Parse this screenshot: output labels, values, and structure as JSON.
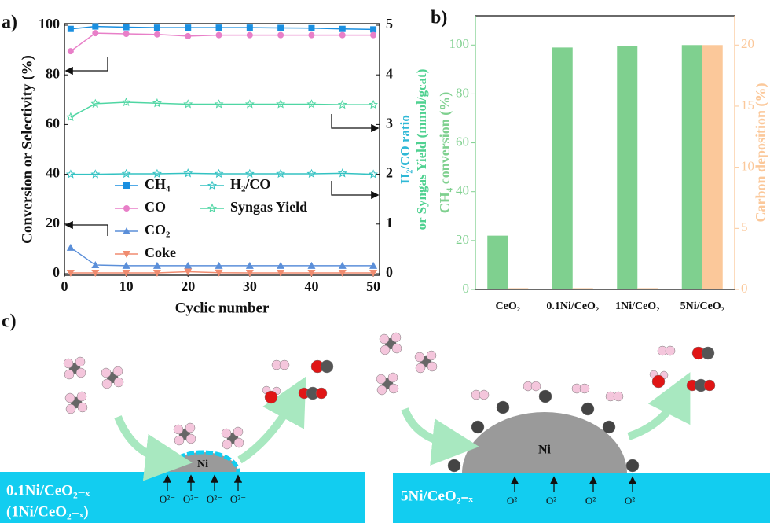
{
  "chart_data": [
    {
      "type": "line",
      "panel_label": "a)",
      "xlabel": "Cyclic number",
      "ylabel": "Conversion or Selectivity (%)",
      "y2label": [
        "H₂/CO ratio",
        "or Syngas Yield (mmol/gcat)"
      ],
      "x": [
        1,
        5,
        10,
        15,
        20,
        25,
        30,
        35,
        40,
        45,
        50
      ],
      "xlim": [
        0,
        50.5
      ],
      "xticks": [
        0,
        10,
        20,
        30,
        40,
        50
      ],
      "ylim": [
        0,
        100
      ],
      "yticks": [
        0,
        20,
        40,
        60,
        80,
        100
      ],
      "y2lim": [
        0,
        5
      ],
      "y2ticks": [
        0,
        1,
        2,
        3,
        4,
        5
      ],
      "series": [
        {
          "name": "CH₄",
          "color": "#1a8fe0",
          "marker": "square",
          "values": [
            98.5,
            99.5,
            99.2,
            99,
            99,
            99,
            99,
            98.9,
            98.8,
            98.5,
            98.3
          ]
        },
        {
          "name": "CO",
          "color": "#e87fc8",
          "marker": "circle",
          "values": [
            89.5,
            96.8,
            96.5,
            96.3,
            95.6,
            96,
            96,
            96,
            96,
            96,
            96
          ]
        },
        {
          "name": "CO₂",
          "color": "#5b8fd9",
          "marker": "triangle",
          "values": [
            10.5,
            3.5,
            3.2,
            3.2,
            3.2,
            3.2,
            3.2,
            3.2,
            3.2,
            3.2,
            3.2
          ]
        },
        {
          "name": "Coke",
          "color": "#f08c70",
          "marker": "triangle-down",
          "values": [
            0.3,
            0.3,
            0.3,
            0.3,
            0.8,
            0.4,
            0.3,
            0.3,
            0.3,
            0.3,
            0.3
          ]
        },
        {
          "name": "H₂/CO",
          "color": "#33c2c2",
          "marker": "star",
          "axis": "y2",
          "values": [
            2.0,
            2.0,
            2.01,
            2.01,
            2.02,
            2.01,
            2.01,
            2.01,
            2.01,
            2.02,
            2.0
          ]
        },
        {
          "name": "Syngas Yield",
          "color": "#4fd6a3",
          "marker": "star",
          "axis": "y2",
          "values": [
            3.15,
            3.42,
            3.45,
            3.43,
            3.41,
            3.41,
            3.41,
            3.41,
            3.41,
            3.4,
            3.4
          ]
        }
      ]
    },
    {
      "type": "bar",
      "panel_label": "b)",
      "ylabel": "CH₄ conversion (%)",
      "y2label": "Carbon deposition (%)",
      "categories": [
        "CeO₂",
        "0.1Ni/CeO₂",
        "1Ni/CeO₂",
        "5Ni/CeO₂"
      ],
      "ylim": [
        0,
        112
      ],
      "yticks": [
        0,
        20,
        40,
        60,
        80,
        100
      ],
      "y2lim": [
        0,
        22.4
      ],
      "y2ticks": [
        0,
        5,
        10,
        15,
        20
      ],
      "series": [
        {
          "name": "CH₄ conversion",
          "color": "#7fd08f",
          "values": [
            22,
            99,
            99.5,
            100
          ]
        },
        {
          "name": "Carbon deposition",
          "color": "#fbc89a",
          "axis": "y2",
          "values": [
            0.1,
            0.1,
            0.1,
            20
          ]
        }
      ]
    }
  ],
  "diagram": {
    "panel_label": "c)",
    "left": {
      "support": [
        "0.1Ni/CeO₂₋ₓ",
        "(1Ni/CeO₂₋ₓ)"
      ],
      "particle": "Ni",
      "ions": [
        "O²⁻",
        "O²⁻",
        "O²⁻",
        "O²⁻"
      ]
    },
    "right": {
      "support": [
        "5Ni/CeO₂₋ₓ"
      ],
      "particle": "Ni",
      "ions": [
        "O²⁻",
        "O²⁻",
        "O²⁻",
        "O²⁻"
      ]
    }
  }
}
